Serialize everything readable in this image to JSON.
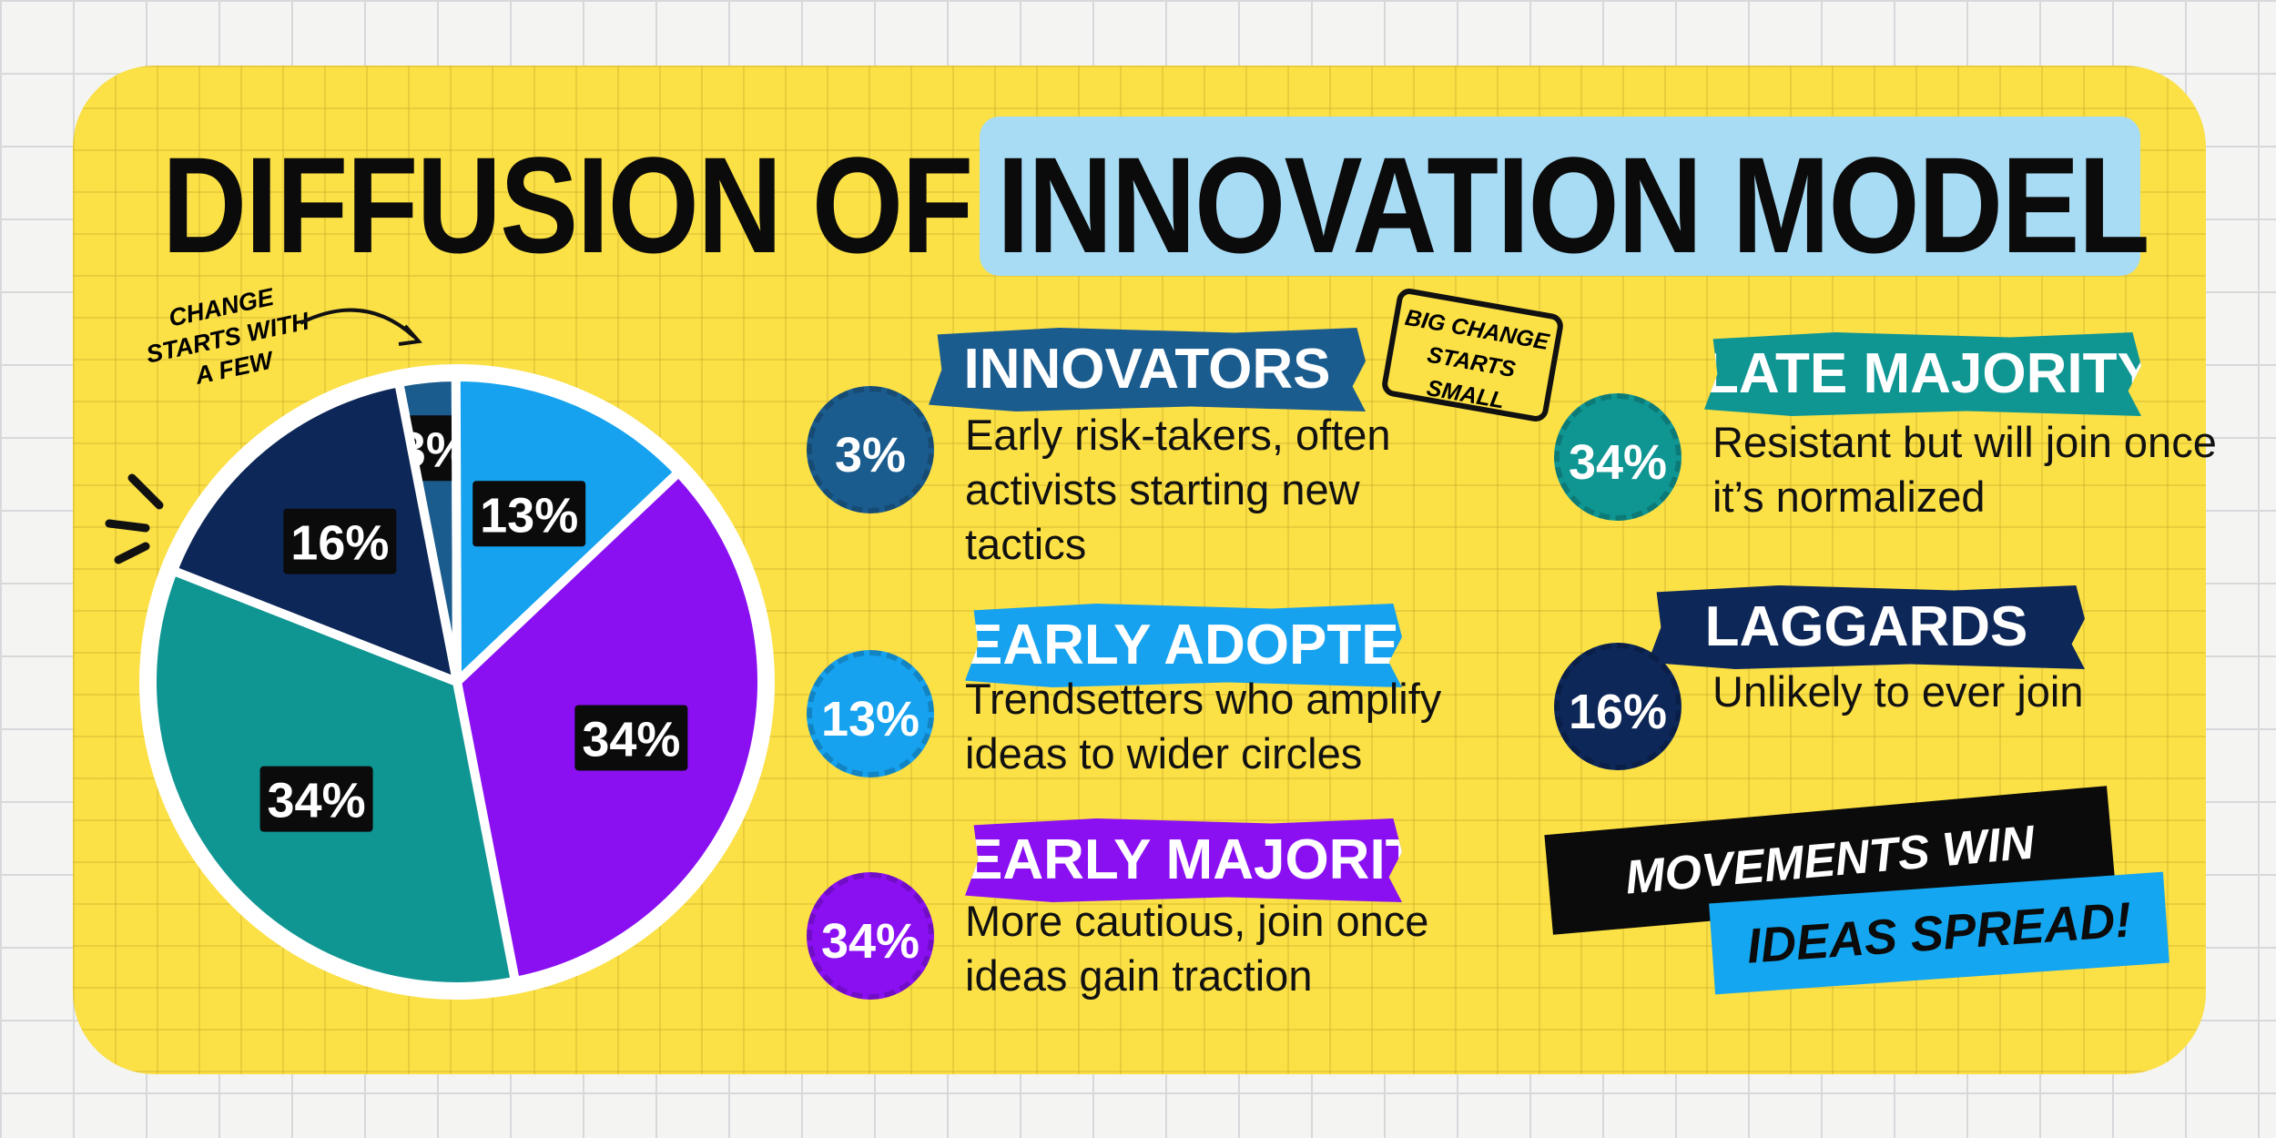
{
  "chart_data": {
    "type": "pie",
    "title": [
      "DIFFUSION OF",
      "INNOVATION MODEL"
    ],
    "categories": [
      "INNOVATORS",
      "EARLY ADOPTERS",
      "EARLY MAJORITY",
      "LATE MAJORITY",
      "LAGGARDS"
    ],
    "values": [
      3,
      13,
      34,
      34,
      16
    ],
    "value_labels": [
      "3%",
      "13%",
      "34%",
      "34%",
      "16%"
    ],
    "colors": [
      "#1b5c8e",
      "#16a2ee",
      "#8a10f2",
      "#0f9693",
      "#0d2758"
    ],
    "descriptions": [
      "Early risk-takers, often activists starting new tactics",
      "Trendsetters who amplify ideas to wider circles",
      "More cautious, join once ideas gain traction",
      "Resistant but will join once it’s normalized",
      "Unlikely to ever join"
    ],
    "annotations": [
      "CHANGE STARTS WITH A FEW",
      "BIG CHANGE STARTS SMALL",
      "MOVEMENTS WIN WHEN",
      "IDEAS SPREAD!"
    ]
  }
}
